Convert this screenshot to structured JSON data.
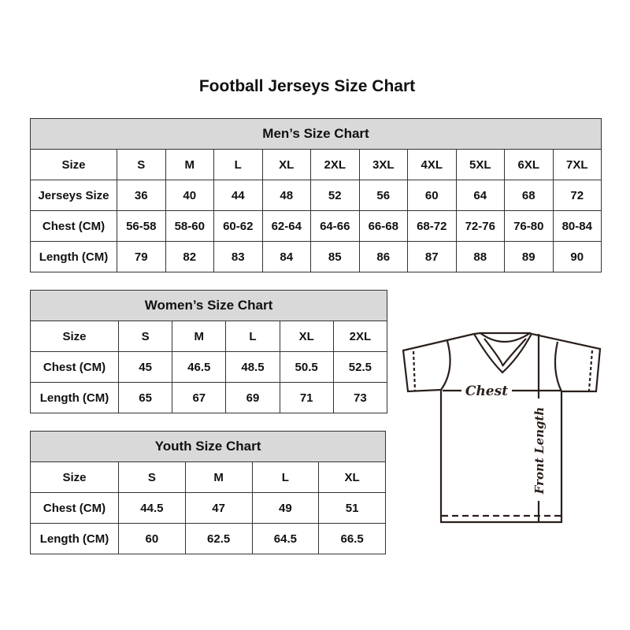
{
  "title": "Football Jerseys Size Chart",
  "men": {
    "heading": "Men’s Size Chart",
    "rows": [
      {
        "label": "Size",
        "values": [
          "S",
          "M",
          "L",
          "XL",
          "2XL",
          "3XL",
          "4XL",
          "5XL",
          "6XL",
          "7XL"
        ]
      },
      {
        "label": "Jerseys Size",
        "values": [
          "36",
          "40",
          "44",
          "48",
          "52",
          "56",
          "60",
          "64",
          "68",
          "72"
        ]
      },
      {
        "label": "Chest (CM)",
        "values": [
          "56-58",
          "58-60",
          "60-62",
          "62-64",
          "64-66",
          "66-68",
          "68-72",
          "72-76",
          "76-80",
          "80-84"
        ]
      },
      {
        "label": "Length (CM)",
        "values": [
          "79",
          "82",
          "83",
          "84",
          "85",
          "86",
          "87",
          "88",
          "89",
          "90"
        ]
      }
    ]
  },
  "women": {
    "heading": "Women’s Size Chart",
    "rows": [
      {
        "label": "Size",
        "values": [
          "S",
          "M",
          "L",
          "XL",
          "2XL"
        ]
      },
      {
        "label": "Chest (CM)",
        "values": [
          "45",
          "46.5",
          "48.5",
          "50.5",
          "52.5"
        ]
      },
      {
        "label": "Length (CM)",
        "values": [
          "65",
          "67",
          "69",
          "71",
          "73"
        ]
      }
    ]
  },
  "youth": {
    "heading": "Youth Size Chart",
    "rows": [
      {
        "label": "Size",
        "values": [
          "S",
          "M",
          "L",
          "XL"
        ]
      },
      {
        "label": "Chest (CM)",
        "values": [
          "44.5",
          "47",
          "49",
          "51"
        ]
      },
      {
        "label": "Length (CM)",
        "values": [
          "60",
          "62.5",
          "64.5",
          "66.5"
        ]
      }
    ]
  },
  "diagram": {
    "chest_label": "Chest",
    "length_label": "Front Length"
  },
  "colors": {
    "header_bg": "#d9d9d9",
    "border": "#333333"
  }
}
